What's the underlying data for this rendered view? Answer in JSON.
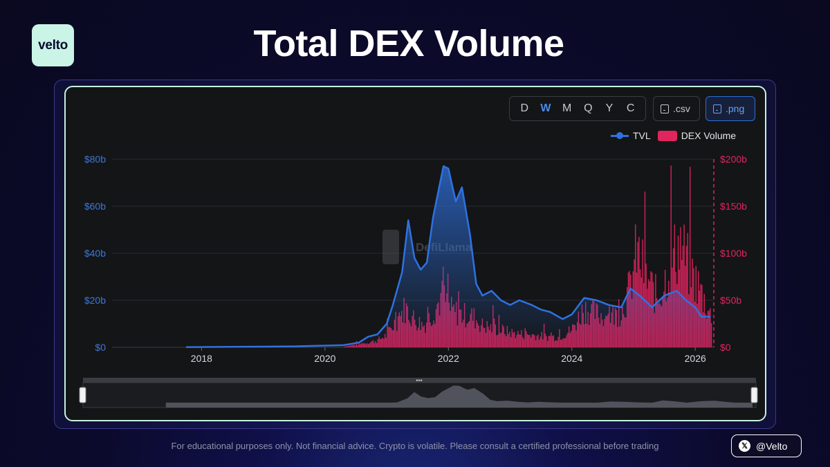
{
  "brand": {
    "logo_text": "velto"
  },
  "page_title": "Total DEX Volume",
  "toolbar": {
    "periods": [
      "D",
      "W",
      "M",
      "Q",
      "Y",
      "C"
    ],
    "active_period": "W",
    "csv_label": ".csv",
    "png_label": ".png"
  },
  "legend": {
    "tvl_label": "TVL",
    "volume_label": "DEX Volume"
  },
  "watermark": "DefiLlama",
  "footer": {
    "disclaimer": "For educational purposes only. Not financial advice. Crypto is volatile. Please consult a certified professional before trading",
    "handle": "@Velto"
  },
  "colors": {
    "tvl": "#2f72e0",
    "volume": "#e0245e",
    "accent": "#c7f2df",
    "background": "#141517"
  },
  "chart_data": {
    "type": "line",
    "x_ticks": [
      "2018",
      "2020",
      "2022",
      "2024",
      "2026"
    ],
    "x_range": [
      2016.55,
      2026.3
    ],
    "y_left": {
      "ticks": [
        "$0",
        "$20b",
        "$40b",
        "$60b",
        "$80b"
      ],
      "range": [
        0,
        80
      ],
      "unit": "billion USD"
    },
    "y_right": {
      "ticks": [
        "$0",
        "$50b",
        "$100b",
        "$150b",
        "$200b"
      ],
      "range": [
        0,
        200
      ],
      "unit": "billion USD"
    },
    "grid": true,
    "legend_position": "top-right",
    "series": [
      {
        "name": "TVL",
        "axis": "left",
        "style": "area-line",
        "points": [
          [
            2017.75,
            0.1
          ],
          [
            2018.5,
            0.2
          ],
          [
            2019.5,
            0.4
          ],
          [
            2020.3,
            0.9
          ],
          [
            2020.55,
            2.0
          ],
          [
            2020.7,
            4.5
          ],
          [
            2020.85,
            5.5
          ],
          [
            2021.0,
            10.0
          ],
          [
            2021.1,
            18.0
          ],
          [
            2021.25,
            32.0
          ],
          [
            2021.35,
            54.0
          ],
          [
            2021.45,
            38.0
          ],
          [
            2021.55,
            33.0
          ],
          [
            2021.65,
            36.0
          ],
          [
            2021.75,
            55.0
          ],
          [
            2021.85,
            68.0
          ],
          [
            2021.92,
            77.0
          ],
          [
            2022.0,
            76.0
          ],
          [
            2022.05,
            70.0
          ],
          [
            2022.12,
            62.0
          ],
          [
            2022.22,
            68.0
          ],
          [
            2022.35,
            48.0
          ],
          [
            2022.45,
            27.0
          ],
          [
            2022.55,
            22.0
          ],
          [
            2022.7,
            24.0
          ],
          [
            2022.85,
            20.0
          ],
          [
            2023.0,
            18.0
          ],
          [
            2023.15,
            20.0
          ],
          [
            2023.35,
            18.0
          ],
          [
            2023.5,
            16.0
          ],
          [
            2023.65,
            15.0
          ],
          [
            2023.85,
            12.0
          ],
          [
            2024.0,
            14.0
          ],
          [
            2024.2,
            21.0
          ],
          [
            2024.4,
            20.0
          ],
          [
            2024.6,
            18.0
          ],
          [
            2024.8,
            17.0
          ],
          [
            2024.95,
            25.0
          ],
          [
            2025.1,
            22.0
          ],
          [
            2025.3,
            17.0
          ],
          [
            2025.5,
            22.0
          ],
          [
            2025.7,
            24.0
          ],
          [
            2025.85,
            20.0
          ],
          [
            2026.0,
            17.0
          ],
          [
            2026.1,
            13.0
          ],
          [
            2026.25,
            13.0
          ]
        ]
      },
      {
        "name": "DEX Volume",
        "axis": "right",
        "style": "bar",
        "weekly_envelope": [
          [
            2020.3,
            1
          ],
          [
            2020.6,
            4
          ],
          [
            2020.85,
            8
          ],
          [
            2021.0,
            14
          ],
          [
            2021.15,
            30
          ],
          [
            2021.3,
            45
          ],
          [
            2021.45,
            32
          ],
          [
            2021.6,
            25
          ],
          [
            2021.75,
            40
          ],
          [
            2021.9,
            58
          ],
          [
            2022.05,
            42
          ],
          [
            2022.2,
            38
          ],
          [
            2022.4,
            35
          ],
          [
            2022.55,
            25
          ],
          [
            2022.7,
            22
          ],
          [
            2022.85,
            20
          ],
          [
            2023.0,
            17
          ],
          [
            2023.2,
            15
          ],
          [
            2023.4,
            14
          ],
          [
            2023.6,
            12
          ],
          [
            2023.8,
            12
          ],
          [
            2024.0,
            20
          ],
          [
            2024.2,
            45
          ],
          [
            2024.4,
            38
          ],
          [
            2024.6,
            35
          ],
          [
            2024.8,
            40
          ],
          [
            2024.95,
            70
          ],
          [
            2025.05,
            110
          ],
          [
            2025.2,
            80
          ],
          [
            2025.4,
            55
          ],
          [
            2025.6,
            95
          ],
          [
            2025.75,
            120
          ],
          [
            2025.9,
            90
          ],
          [
            2026.05,
            70
          ],
          [
            2026.2,
            45
          ],
          [
            2026.28,
            30
          ]
        ]
      }
    ]
  }
}
